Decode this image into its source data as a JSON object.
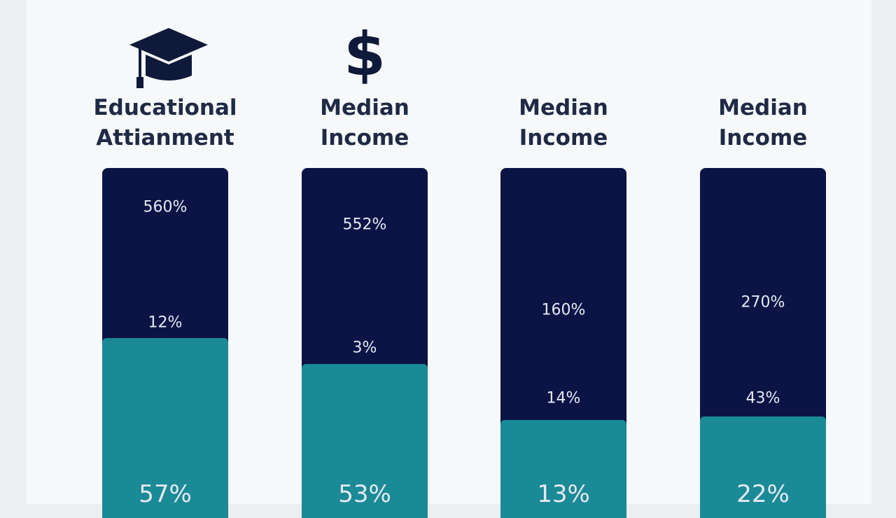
{
  "columns": [
    {
      "title_lines": [
        "Educational",
        "Attianment"
      ],
      "labels": [
        "560%",
        "12%",
        "57%"
      ]
    },
    {
      "icon": "$",
      "title_lines": [
        "Median",
        "Income"
      ],
      "labels": [
        "552%",
        "3%",
        "53%"
      ]
    },
    {
      "title_lines": [
        "Median",
        "Income"
      ],
      "labels": [
        "160%",
        "14%",
        "13%"
      ]
    },
    {
      "title_lines": [
        "Median",
        "Income"
      ],
      "labels": [
        "270%",
        "43%",
        "22%"
      ]
    }
  ]
}
